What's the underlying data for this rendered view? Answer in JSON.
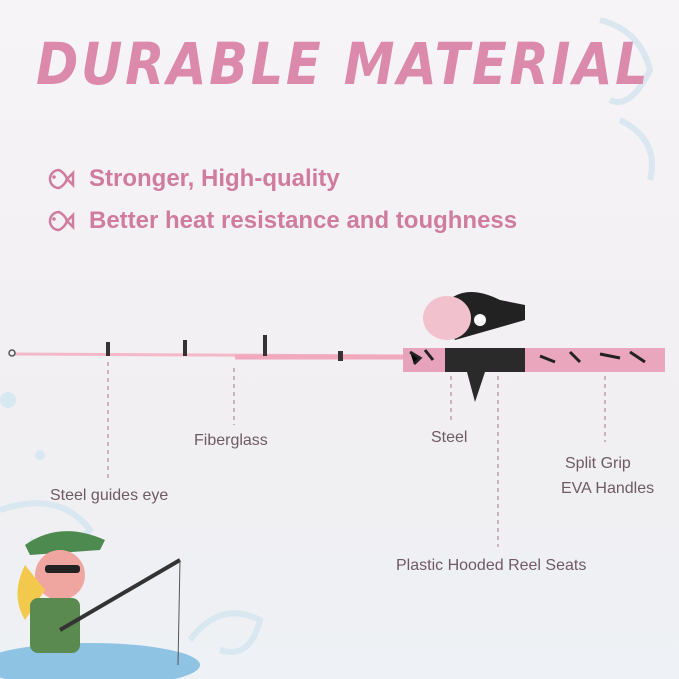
{
  "title": "DURABLE MATERIAL",
  "features": [
    {
      "icon": "fish-icon",
      "text": "Stronger, High-quality"
    },
    {
      "icon": "fish-icon",
      "text": "Better heat resistance and toughness"
    }
  ],
  "callouts": {
    "guides": "Steel guides eye",
    "fiberglass": "Fiberglass",
    "steel": "Steel",
    "grip_line1": "Split Grip",
    "grip_line2": "EVA Handles",
    "reel_seat": "Plastic Hooded Reel Seats"
  },
  "colors": {
    "accent": "#dc8aab",
    "rod": "#f4b8c8",
    "text": "#6e5a63"
  }
}
